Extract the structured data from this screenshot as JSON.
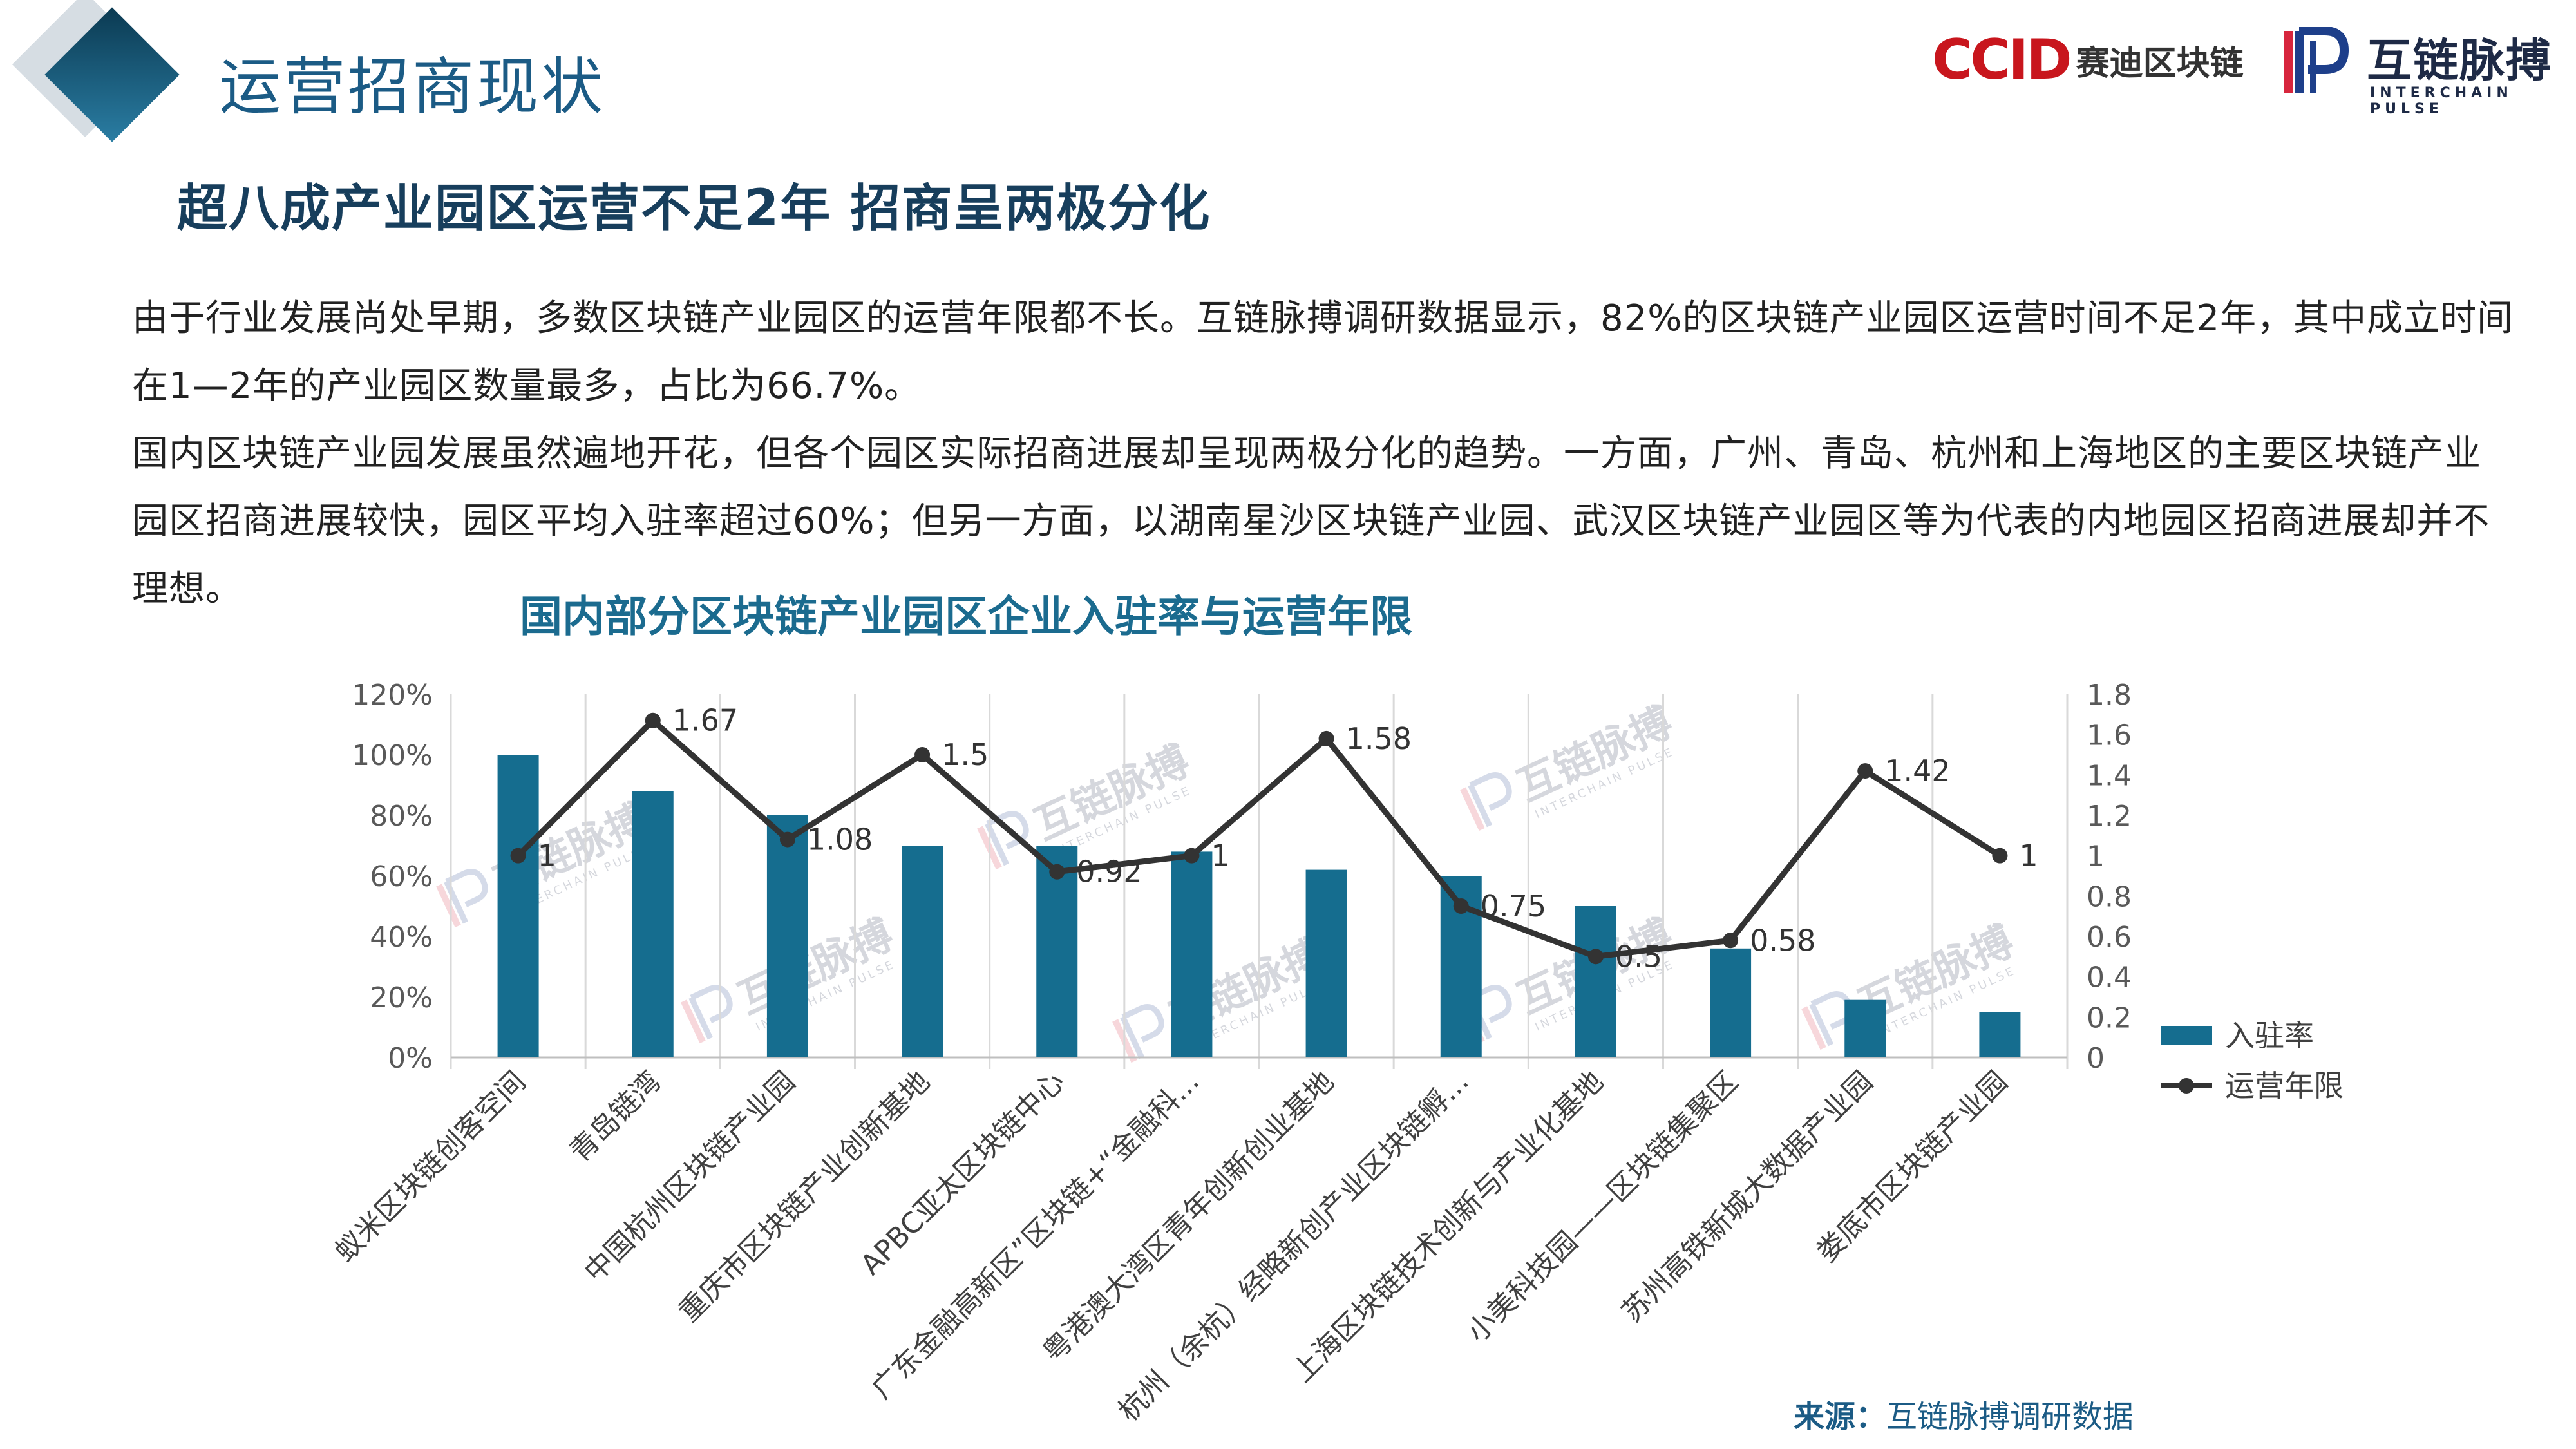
{
  "header": {
    "section_title": "运营招商现状",
    "logo_ccid_mark": "CCID",
    "logo_ccid_text": "赛迪区块链",
    "logo_pulse_cn": "互链脉搏",
    "logo_pulse_en": "INTERCHAIN PULSE"
  },
  "headline": "超八成产业园区运营不足2年 招商呈两极分化",
  "paragraph1": "由于行业发展尚处早期，多数区块链产业园区的运营年限都不长。互链脉搏调研数据显示，82%的区块链产业园区运营时间不足2年，其中成立时间在1—2年的产业园区数量最多，占比为66.7%。",
  "paragraph2": "国内区块链产业园发展虽然遍地开花，但各个园区实际招商进展却呈现两极分化的趋势。一方面，广州、青岛、杭州和上海地区的主要区块链产业园区招商进展较快，园区平均入驻率超过60%；但另一方面，以湖南星沙区块链产业园、武汉区块链产业园区等为代表的内地园区招商进展却并不理想。",
  "source": {
    "label": "来源：",
    "text": "互链脉搏调研数据"
  },
  "watermark": {
    "cn": "互链脉搏",
    "en": "INTERCHAIN PULSE"
  },
  "colors": {
    "bar": "#156d8f",
    "line": "#333333",
    "title": "#1b6b8f",
    "accent": "#1b5b85"
  },
  "chart_data": {
    "type": "bar",
    "title": "国内部分区块链产业园区企业入驻率与运营年限",
    "categories": [
      "蚁米区块链创客空间",
      "青岛链湾",
      "中国杭州区块链产业园",
      "重庆市区块链产业创新基地",
      "APBC亚太区块链中心",
      "广东金融高新区”区块链+“金融科...",
      "粤港澳大湾区青年创新创业基地",
      "杭州（余杭）经略新创产业区块链孵...",
      "上海区块链技术创新与产业化基地",
      "小美科技园——区块链集聚区",
      "苏州高铁新城大数据产业园",
      "娄底市区块链产业园"
    ],
    "series": [
      {
        "name": "入驻率",
        "type": "bar",
        "axis": "left",
        "values": [
          100,
          88,
          80,
          70,
          70,
          68,
          62,
          60,
          50,
          36,
          19,
          15
        ]
      },
      {
        "name": "运营年限",
        "type": "line",
        "axis": "right",
        "values": [
          1,
          1.67,
          1.08,
          1.5,
          0.92,
          1,
          1.58,
          0.75,
          0.5,
          0.58,
          1.42,
          1
        ],
        "labels": [
          "1",
          "1.67",
          "1.08",
          "1.5",
          "0.92",
          "1",
          "1.58",
          "0.75",
          "0.5",
          "0.58",
          "1.42",
          "1"
        ]
      }
    ],
    "y_left": {
      "range": [
        0,
        120
      ],
      "ticks": [
        0,
        20,
        40,
        60,
        80,
        100,
        120
      ],
      "tick_labels": [
        "0%",
        "20%",
        "40%",
        "60%",
        "80%",
        "100%",
        "120%"
      ]
    },
    "y_right": {
      "range": [
        0,
        1.8
      ],
      "ticks": [
        0,
        0.2,
        0.4,
        0.6,
        0.8,
        1,
        1.2,
        1.4,
        1.6,
        1.8
      ],
      "tick_labels": [
        "0",
        "0.2",
        "0.4",
        "0.6",
        "0.8",
        "1",
        "1.2",
        "1.4",
        "1.6",
        "1.8"
      ]
    },
    "grid": "vertical",
    "legend_position": "right"
  }
}
